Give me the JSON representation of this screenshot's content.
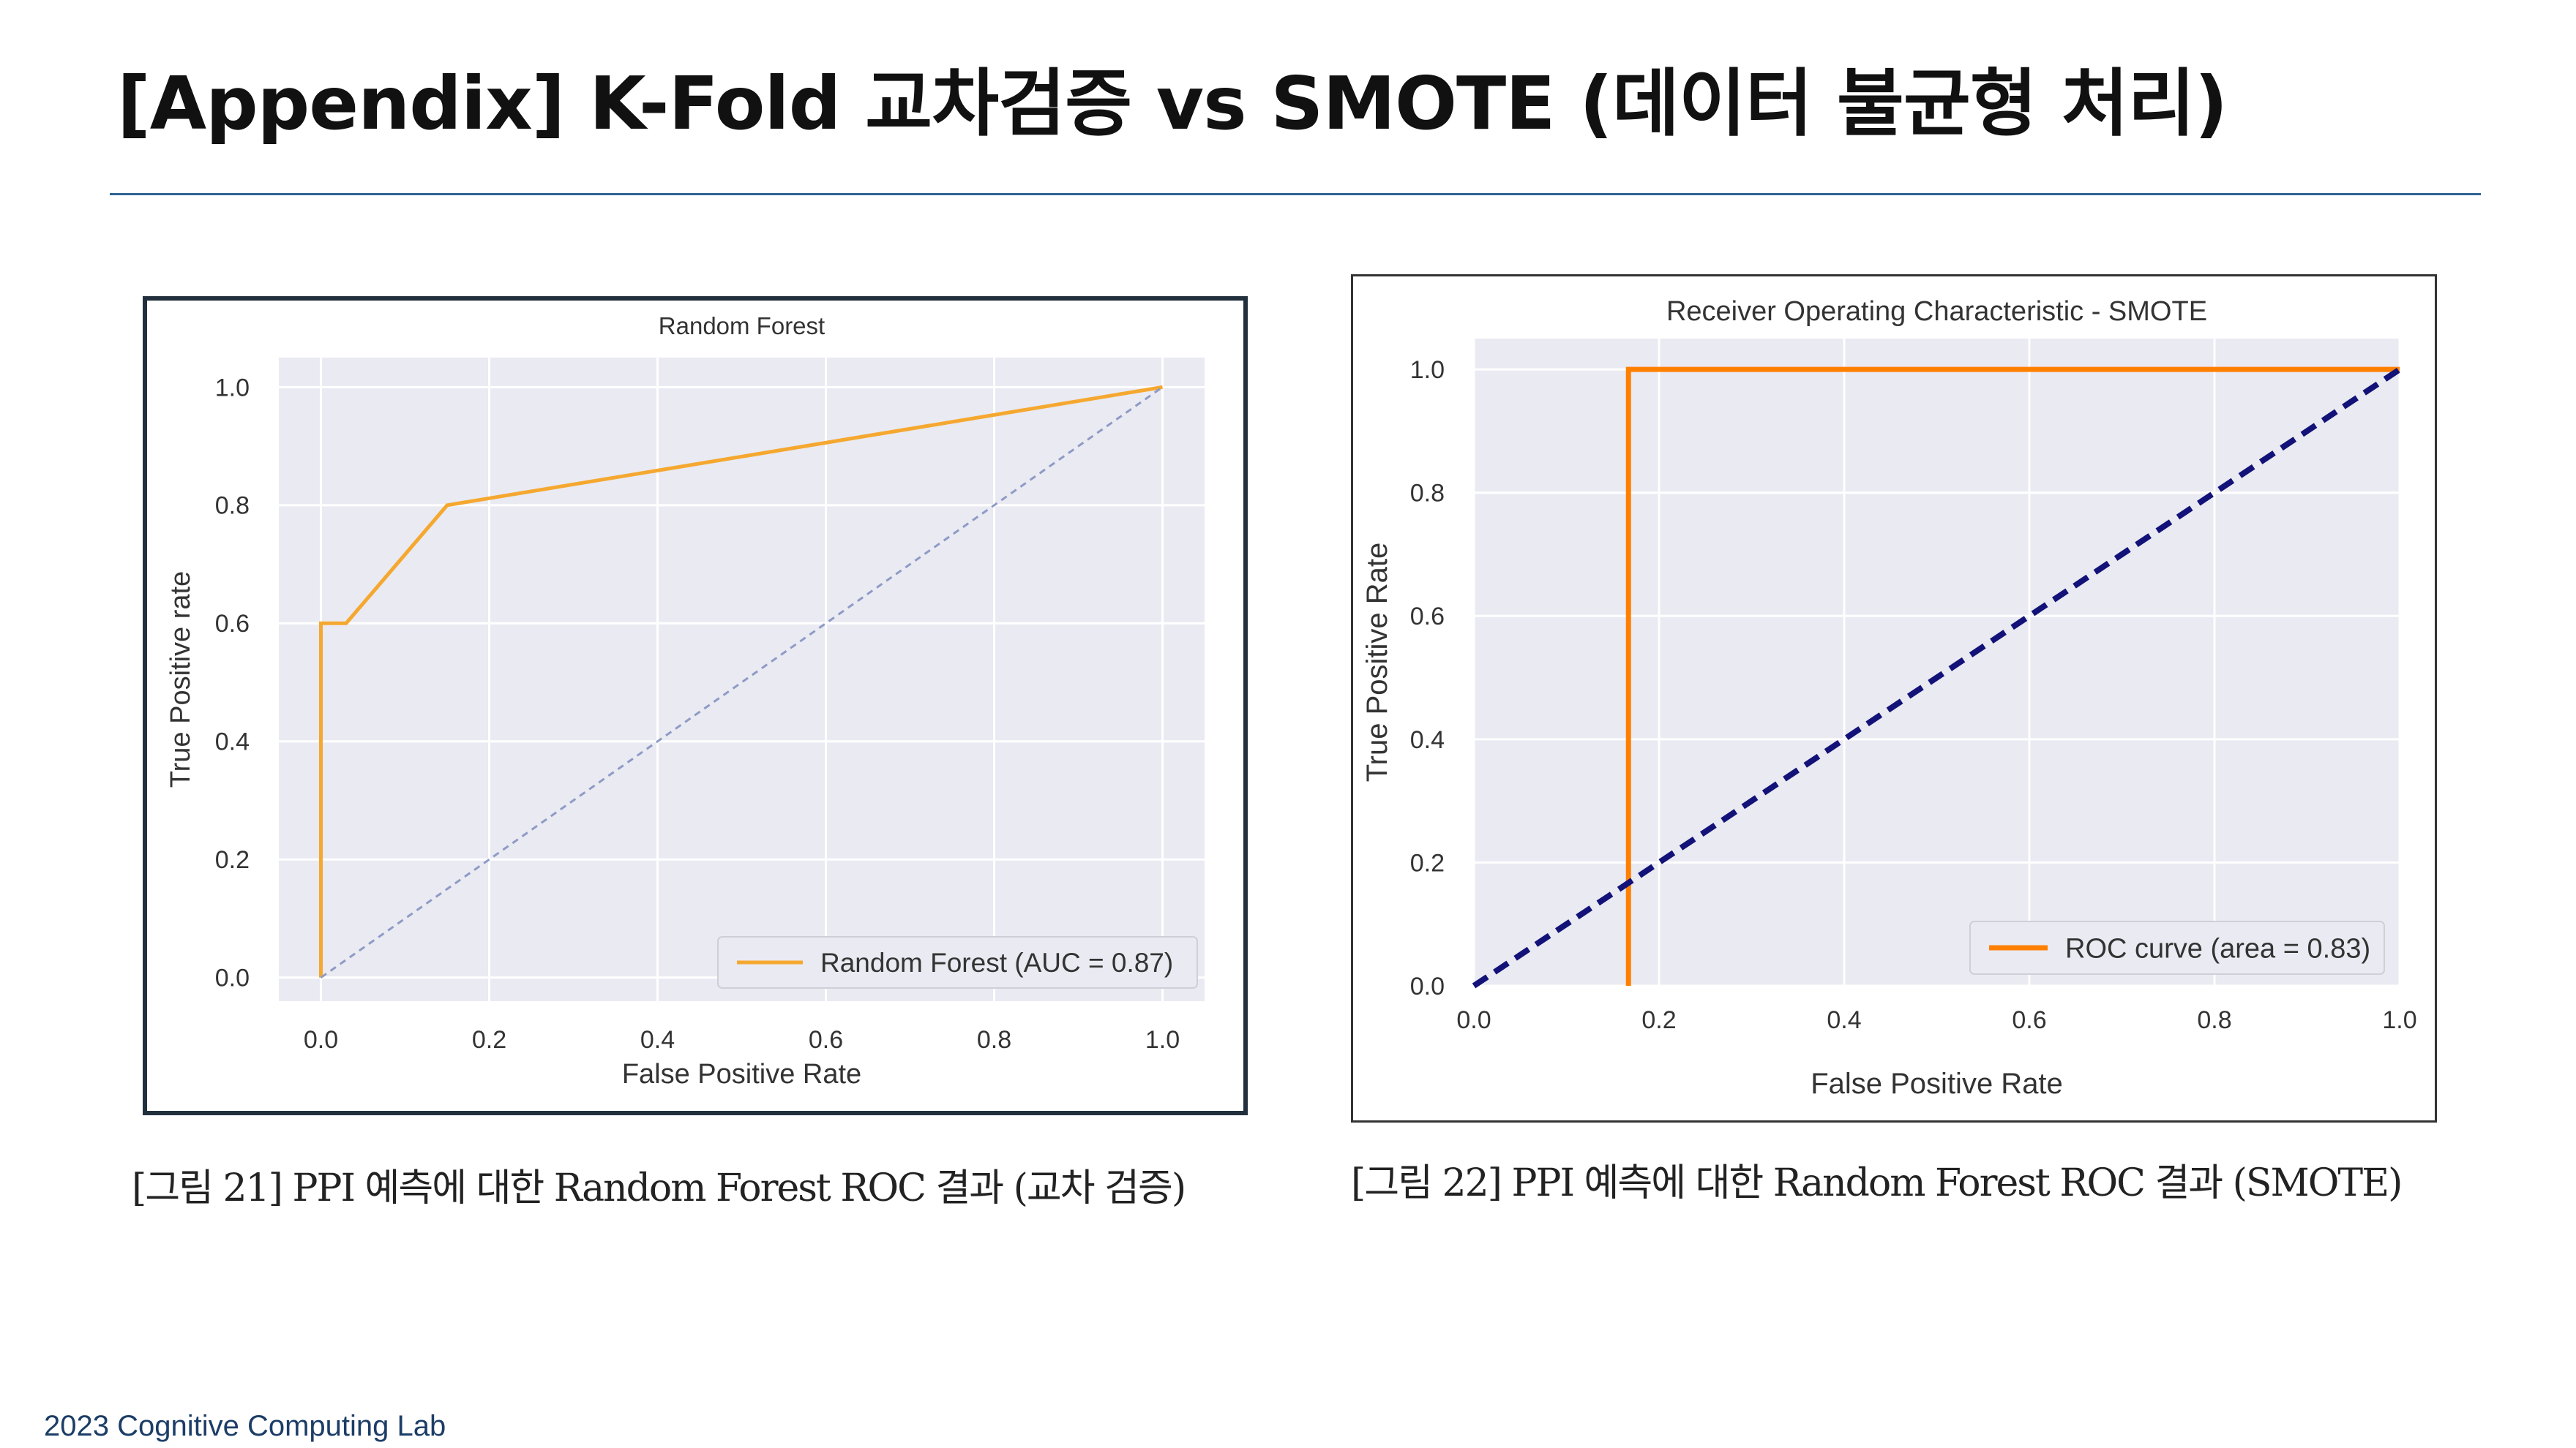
{
  "slide": {
    "title": "[Appendix] K-Fold 교차검증 vs SMOTE (데이터 불균형 처리)",
    "footer": "2023 Cognitive Computing Lab"
  },
  "captions": [
    "[그림 21] PPI 예측에 대한 Random Forest ROC 결과 (교차 검증)",
    "[그림 22] PPI 예측에 대한 Random Forest ROC 결과 (SMOTE)"
  ],
  "colors": {
    "plot_bg": "#eaeaf2",
    "rf_curve": "#f5a830",
    "rf_diag": "#8e9bc6",
    "smote_curve": "#ff8000",
    "smote_diag": "#121278",
    "footer": "#1c3d66"
  },
  "chart_data": [
    {
      "type": "line",
      "title": "Random Forest",
      "xlabel": "False Positive Rate",
      "ylabel": "True Positive rate",
      "xlim": [
        0.0,
        1.0
      ],
      "ylim": [
        0.0,
        1.0
      ],
      "xticks": [
        "0.0",
        "0.2",
        "0.4",
        "0.6",
        "0.8",
        "1.0"
      ],
      "yticks": [
        "0.0",
        "0.2",
        "0.4",
        "0.6",
        "0.8",
        "1.0"
      ],
      "grid": true,
      "legend_position": "lower-right",
      "series": [
        {
          "name": "Random Forest (AUC = 0.87)",
          "x": [
            0.0,
            0.0,
            0.03,
            0.15,
            1.0
          ],
          "y": [
            0.0,
            0.6,
            0.6,
            0.8,
            1.0
          ]
        },
        {
          "style": "dashed",
          "x": [
            0.0,
            1.0
          ],
          "y": [
            0.0,
            1.0
          ]
        }
      ]
    },
    {
      "type": "line",
      "title": "Receiver Operating Characteristic - SMOTE",
      "xlabel": "False Positive Rate",
      "ylabel": "True Positive Rate",
      "xlim": [
        0.0,
        1.0
      ],
      "ylim": [
        0.0,
        1.05
      ],
      "xticks": [
        "0.0",
        "0.2",
        "0.4",
        "0.6",
        "0.8",
        "1.0"
      ],
      "yticks": [
        "0.0",
        "0.2",
        "0.4",
        "0.6",
        "0.8",
        "1.0"
      ],
      "grid": true,
      "legend_position": "lower-right",
      "series": [
        {
          "name": "ROC curve (area = 0.83)",
          "x": [
            0.167,
            0.167,
            1.0
          ],
          "y": [
            0.0,
            1.0,
            1.0
          ]
        },
        {
          "style": "dashed",
          "x": [
            0.0,
            1.0
          ],
          "y": [
            0.0,
            1.0
          ]
        }
      ]
    }
  ]
}
